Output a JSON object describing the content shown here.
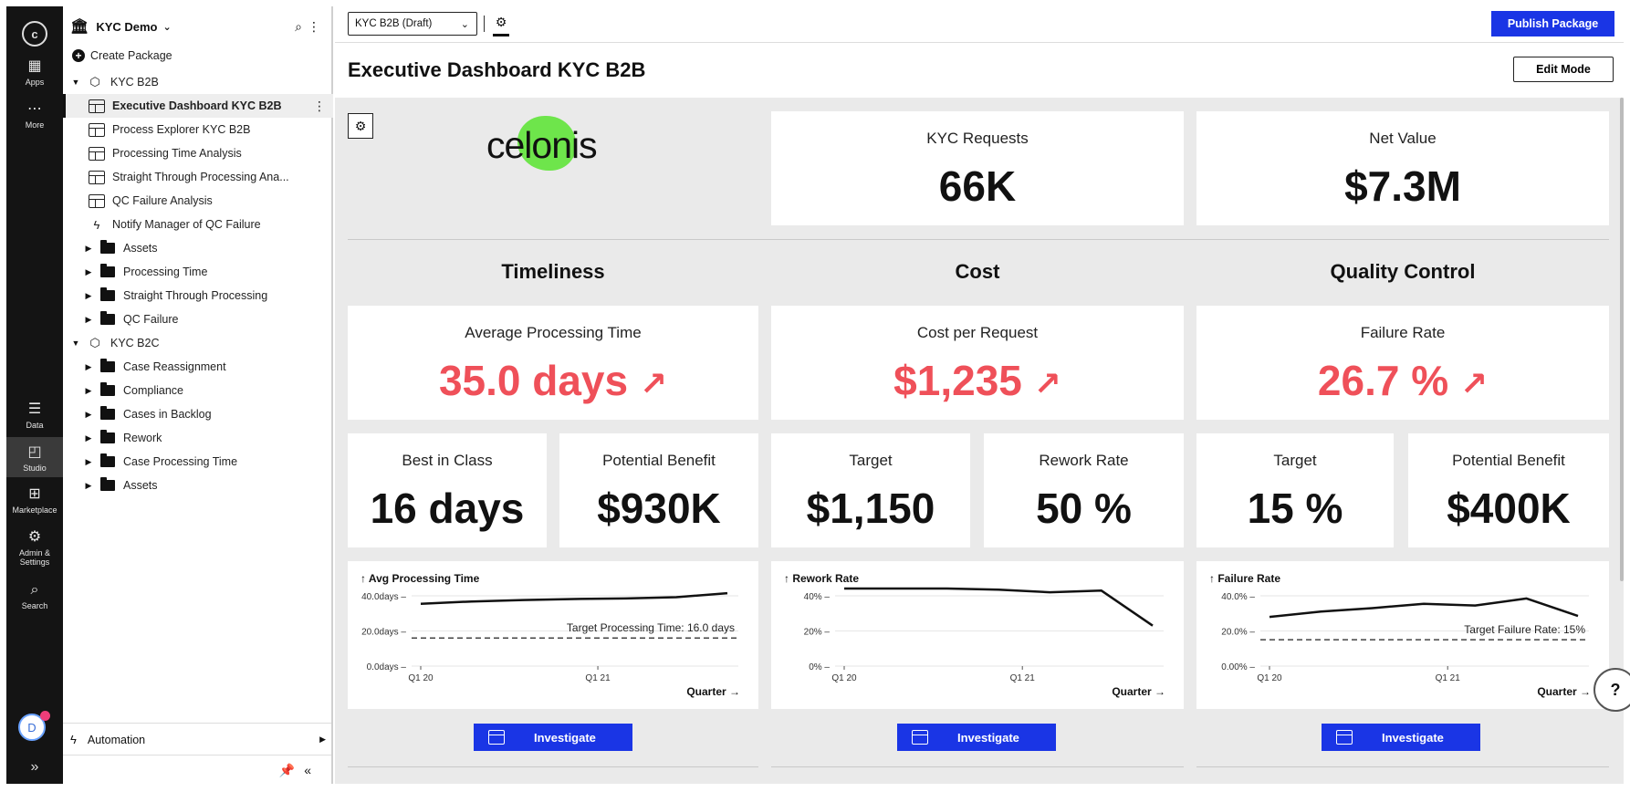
{
  "rail": {
    "logo": "c",
    "items": [
      {
        "label": "Apps",
        "icon": "grid-icon"
      },
      {
        "label": "More",
        "icon": "more-icon"
      },
      {
        "label": "Data",
        "icon": "data-icon"
      },
      {
        "label": "Studio",
        "icon": "studio-icon"
      },
      {
        "label": "Marketplace",
        "icon": "marketplace-icon"
      },
      {
        "label": "Admin & Settings",
        "icon": "settings-icon"
      },
      {
        "label": "Search",
        "icon": "search-icon"
      }
    ],
    "avatar": "D"
  },
  "sidebar": {
    "space": "KYC Demo",
    "create": "Create Package",
    "tree": [
      {
        "label": "KYC B2B"
      },
      {
        "label": "Executive Dashboard KYC B2B"
      },
      {
        "label": "Process Explorer KYC B2B"
      },
      {
        "label": "Processing Time Analysis"
      },
      {
        "label": "Straight Through Processing Ana..."
      },
      {
        "label": "QC Failure Analysis"
      },
      {
        "label": "Notify Manager of QC Failure"
      },
      {
        "label": "Assets"
      },
      {
        "label": "Processing Time"
      },
      {
        "label": "Straight Through Processing"
      },
      {
        "label": "QC Failure"
      },
      {
        "label": "KYC B2C"
      },
      {
        "label": "Case Reassignment"
      },
      {
        "label": "Compliance"
      },
      {
        "label": "Cases in Backlog"
      },
      {
        "label": "Rework"
      },
      {
        "label": "Case Processing Time"
      },
      {
        "label": "Assets"
      }
    ],
    "automation": "Automation"
  },
  "topbar": {
    "package": "KYC B2B (Draft)",
    "publish": "Publish Package"
  },
  "page": {
    "title": "Executive Dashboard KYC B2B",
    "edit": "Edit Mode"
  },
  "logo_text": "celonis",
  "top_kpis": [
    {
      "label": "KYC Requests",
      "value": "66K"
    },
    {
      "label": "Net Value",
      "value": "$7.3M"
    }
  ],
  "sections": [
    {
      "title": "Timeliness",
      "main": {
        "label": "Average Processing Time",
        "value": "35.0 days"
      },
      "sub": [
        {
          "label": "Best in Class",
          "value": "16 days"
        },
        {
          "label": "Potential Benefit",
          "value": "$930K"
        }
      ]
    },
    {
      "title": "Cost",
      "main": {
        "label": "Cost per Request",
        "value": "$1,235"
      },
      "sub": [
        {
          "label": "Target",
          "value": "$1,150"
        },
        {
          "label": "Rework Rate",
          "value": "50 %"
        }
      ]
    },
    {
      "title": "Quality Control",
      "main": {
        "label": "Failure Rate",
        "value": "26.7 %"
      },
      "sub": [
        {
          "label": "Target",
          "value": "15 %"
        },
        {
          "label": "Potential Benefit",
          "value": "$400K"
        }
      ]
    }
  ],
  "investigate_label": "Investigate",
  "colors": {
    "accent": "#1a35e5",
    "alert": "#ef5059",
    "logo_green": "#6ee54b"
  },
  "chart_data": [
    {
      "type": "line",
      "title": "↑ Avg Processing Time",
      "xlabel": "Quarter →",
      "x_ticks": [
        "Q1 20",
        "Q1 21"
      ],
      "y_ticks": [
        "40.0days",
        "20.0days",
        "0.0days"
      ],
      "ylim": [
        0,
        40
      ],
      "values": [
        35.5,
        36.8,
        37.6,
        38.2,
        38.5,
        39.2,
        41.5
      ],
      "target": {
        "label": "Target Processing Time: 16.0 days",
        "value": 16
      }
    },
    {
      "type": "line",
      "title": "↑ Rework Rate",
      "xlabel": "Quarter →",
      "x_ticks": [
        "Q1 20",
        "Q1 21"
      ],
      "y_ticks": [
        "40%",
        "20%",
        "0%"
      ],
      "ylim": [
        0,
        40
      ],
      "values": [
        50,
        47.5,
        45,
        43.5,
        42,
        43,
        23
      ]
    },
    {
      "type": "line",
      "title": "↑ Failure Rate",
      "xlabel": "Quarter →",
      "x_ticks": [
        "Q1 20",
        "Q1 21"
      ],
      "y_ticks": [
        "40.0%",
        "20.0%",
        "0.00%"
      ],
      "ylim": [
        0,
        40
      ],
      "values": [
        28,
        31,
        33,
        35.5,
        34.5,
        38.5,
        28.5
      ],
      "target": {
        "label": "Target Failure Rate: 15%",
        "value": 15
      }
    }
  ]
}
